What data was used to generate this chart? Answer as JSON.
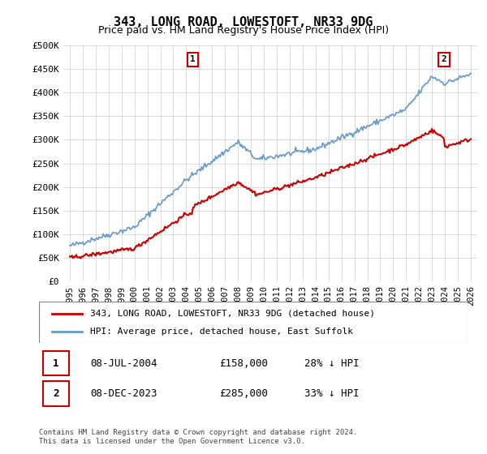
{
  "title": "343, LONG ROAD, LOWESTOFT, NR33 9DG",
  "subtitle": "Price paid vs. HM Land Registry's House Price Index (HPI)",
  "legend_line1": "343, LONG ROAD, LOWESTOFT, NR33 9DG (detached house)",
  "legend_line2": "HPI: Average price, detached house, East Suffolk",
  "annotation1_date": "08-JUL-2004",
  "annotation1_price": "£158,000",
  "annotation1_hpi": "28% ↓ HPI",
  "annotation2_date": "08-DEC-2023",
  "annotation2_price": "£285,000",
  "annotation2_hpi": "33% ↓ HPI",
  "footer": "Contains HM Land Registry data © Crown copyright and database right 2024.\nThis data is licensed under the Open Government Licence v3.0.",
  "red_color": "#cc0000",
  "blue_color": "#6699cc",
  "grid_color": "#cccccc",
  "background_color": "#ffffff",
  "marker1_x_year": 2004.52,
  "marker1_y": 158000,
  "marker2_x_year": 2023.93,
  "marker2_y": 285000,
  "ylim": [
    0,
    500000
  ],
  "xlim_start": 1994.5,
  "xlim_end": 2026.5
}
